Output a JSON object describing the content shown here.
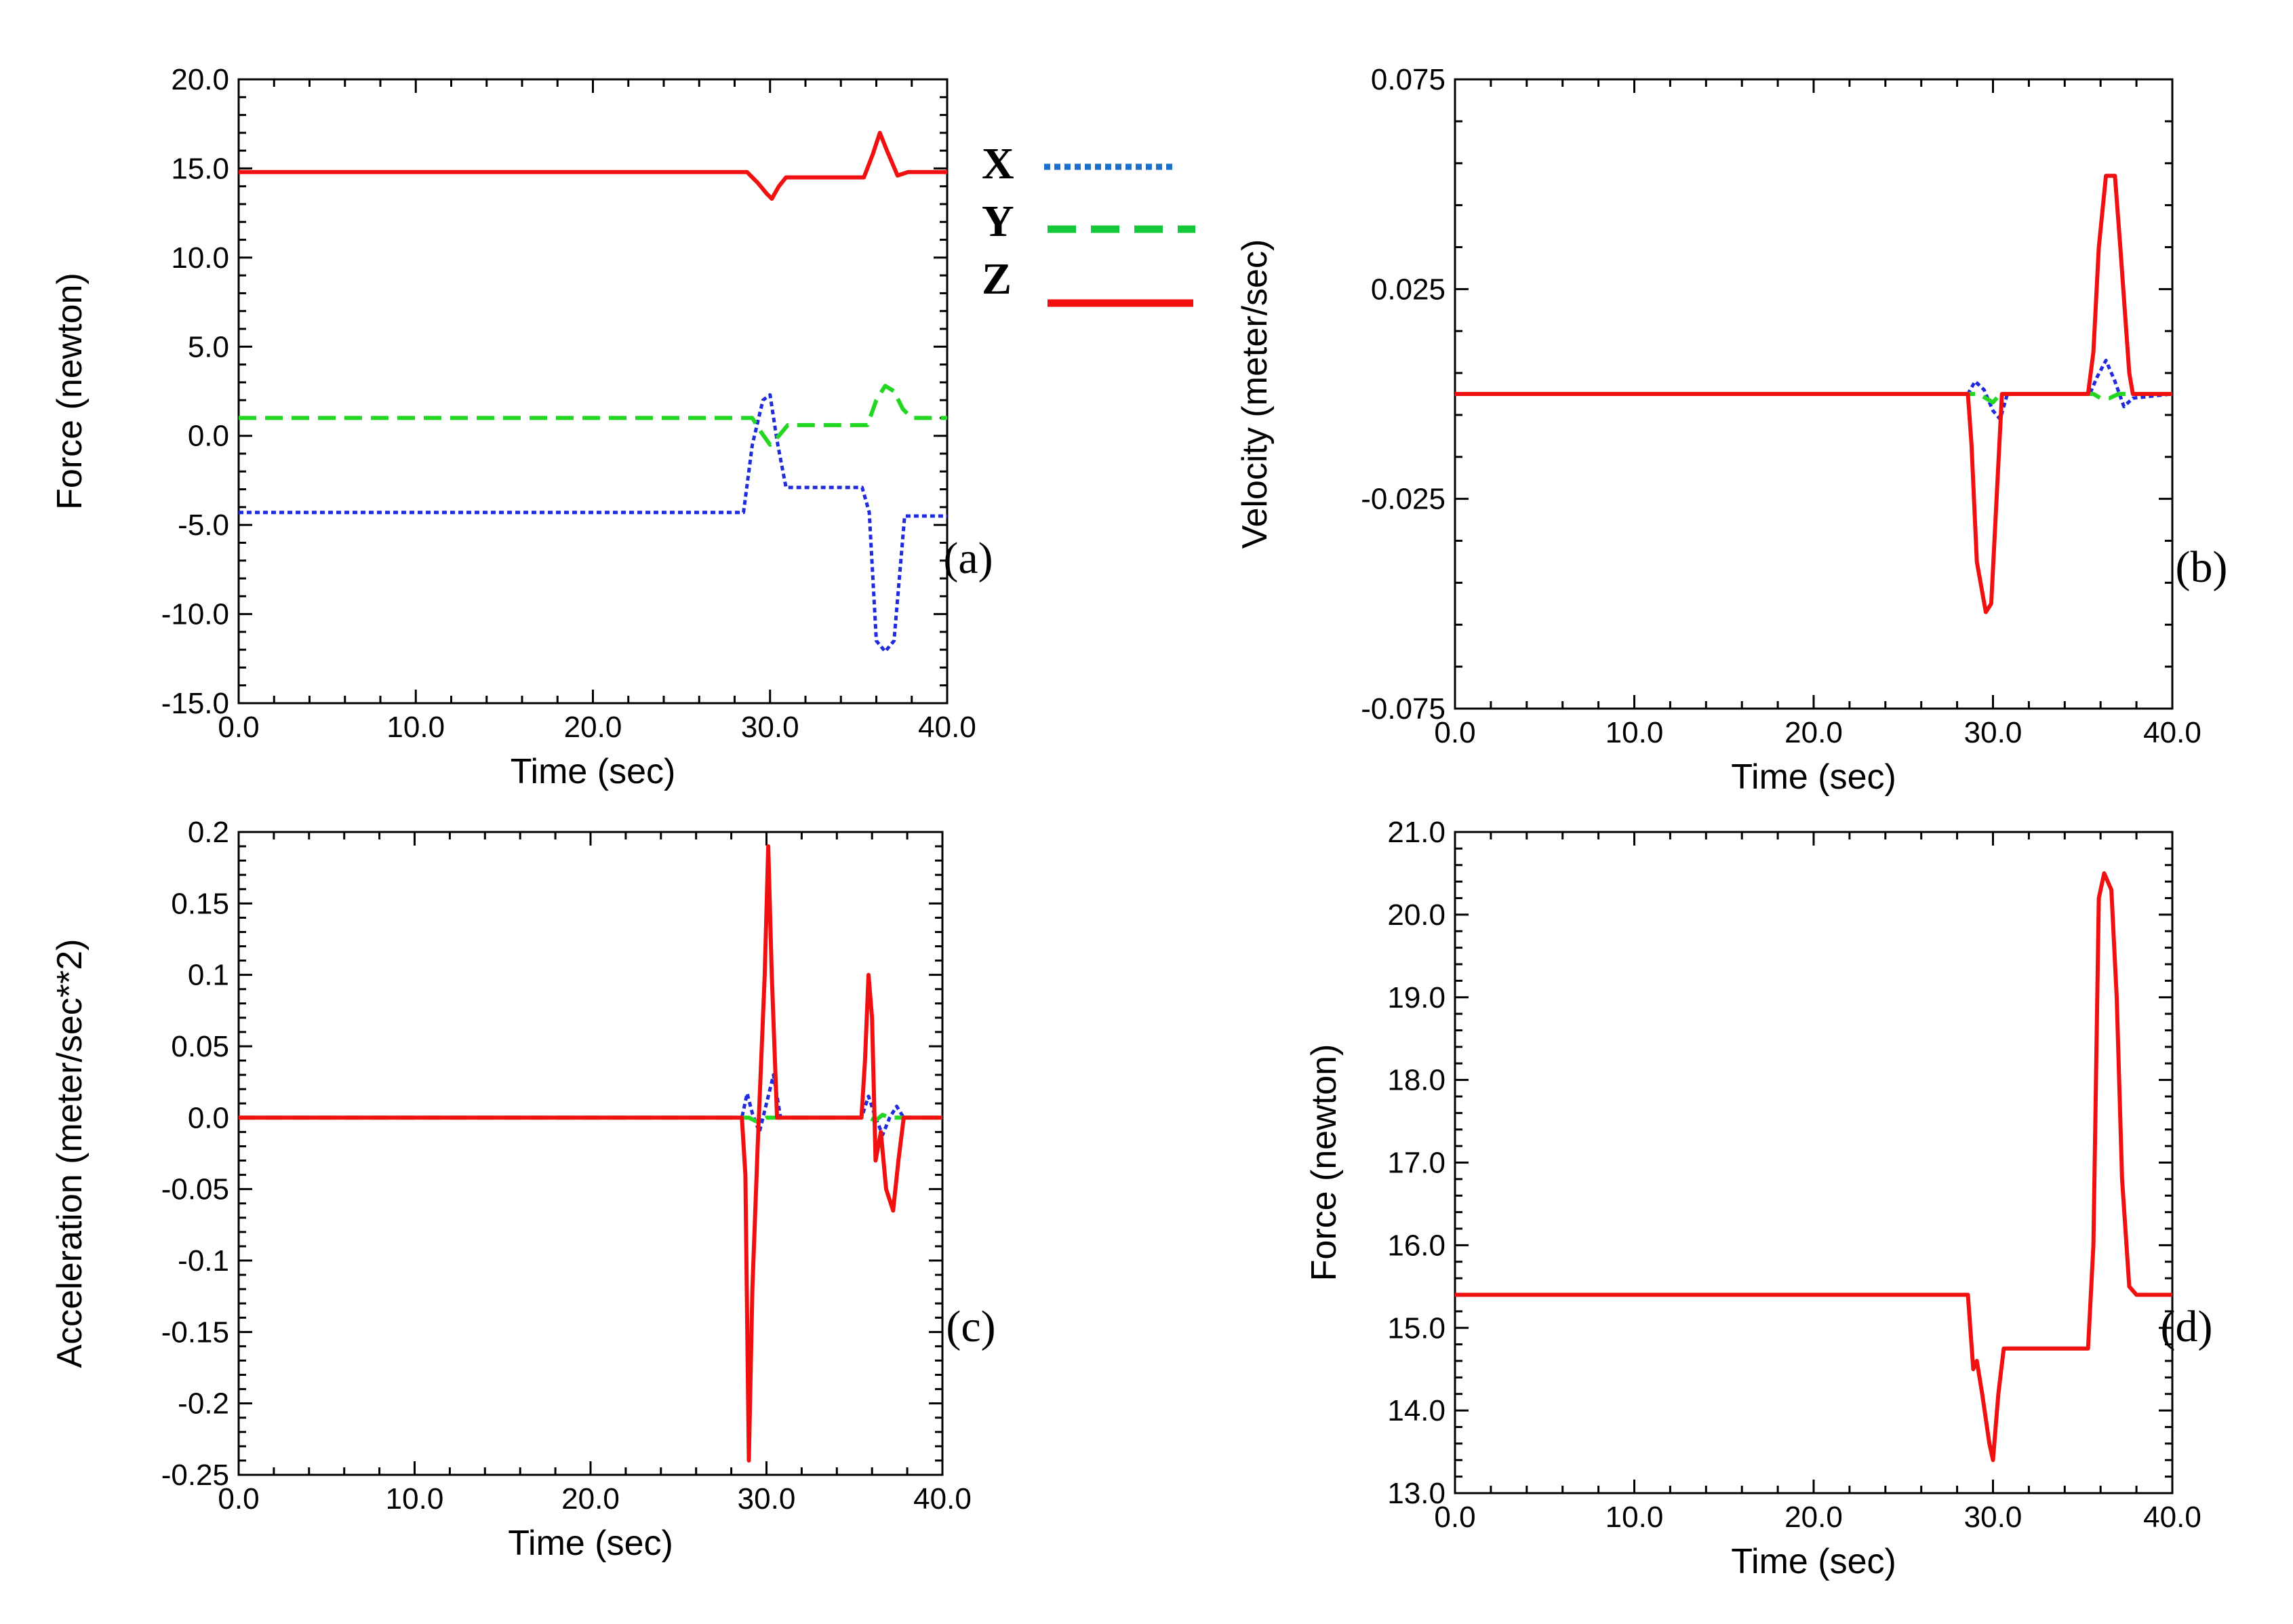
{
  "colors": {
    "X": "#1f2bdc",
    "Y": "#22d622",
    "Z": "#f01010",
    "legend_X": "#1d6fc9",
    "legend_Y": "#14c83a"
  },
  "legend": {
    "items": [
      {
        "key": "X",
        "label": "X",
        "style": "dotted"
      },
      {
        "key": "Y",
        "label": "Y",
        "style": "dashed"
      },
      {
        "key": "Z",
        "label": "Z",
        "style": "solid"
      }
    ]
  },
  "chart_data": [
    {
      "id": "a",
      "type": "line",
      "panel_label": "(a)",
      "xlabel": "Time (sec)",
      "ylabel": "Force (newton)",
      "xlim": [
        0,
        40
      ],
      "ylim": [
        -15,
        20
      ],
      "xticks": [
        "0.0",
        "10.0",
        "20.0",
        "30.0",
        "40.0"
      ],
      "xtick_values": [
        0,
        10,
        20,
        30,
        40
      ],
      "yticks": [
        "20.0",
        "15.0",
        "10.0",
        "5.0",
        "0.0",
        "-5.0",
        "-10.0",
        "-15.0"
      ],
      "ytick_values": [
        20,
        15,
        10,
        5,
        0,
        -5,
        -10,
        -15
      ],
      "series": [
        {
          "name": "X",
          "style": "dotted",
          "x": [
            0,
            28.5,
            29.0,
            29.6,
            30.0,
            30.4,
            30.9,
            35.2,
            35.6,
            36.0,
            36.5,
            37.0,
            37.6,
            40
          ],
          "y": [
            -4.3,
            -4.3,
            -0.5,
            2.0,
            2.3,
            -0.3,
            -2.9,
            -2.9,
            -4.3,
            -11.5,
            -12.1,
            -11.5,
            -4.5,
            -4.5
          ]
        },
        {
          "name": "Y",
          "style": "dashed",
          "x": [
            0,
            29.0,
            29.5,
            30.0,
            30.5,
            31.0,
            35.5,
            36.0,
            36.5,
            37.0,
            37.5,
            38.0,
            40
          ],
          "y": [
            1.0,
            1.0,
            0.2,
            -0.5,
            0.0,
            0.6,
            0.6,
            2.0,
            2.8,
            2.5,
            1.5,
            1.0,
            1.0
          ]
        },
        {
          "name": "Z",
          "style": "solid",
          "x": [
            0,
            28.7,
            29.3,
            29.8,
            30.1,
            30.5,
            30.9,
            35.3,
            35.8,
            36.2,
            36.6,
            37.2,
            37.8,
            40
          ],
          "y": [
            14.8,
            14.8,
            14.2,
            13.6,
            13.3,
            14.0,
            14.5,
            14.5,
            15.8,
            17.0,
            16.0,
            14.6,
            14.8,
            14.8
          ]
        }
      ]
    },
    {
      "id": "b",
      "type": "line",
      "panel_label": "(b)",
      "xlabel": "Time (sec)",
      "ylabel": "Velocity (meter/sec)",
      "xlim": [
        0,
        40
      ],
      "ylim": [
        -0.075,
        0.075
      ],
      "xticks": [
        "0.0",
        "10.0",
        "20.0",
        "30.0",
        "40.0"
      ],
      "xtick_values": [
        0,
        10,
        20,
        30,
        40
      ],
      "yticks": [
        "0.075",
        "0.025",
        "-0.025",
        "-0.075"
      ],
      "ytick_values": [
        0.075,
        0.025,
        -0.025,
        -0.075
      ],
      "series": [
        {
          "name": "X",
          "style": "dotted",
          "x": [
            0,
            28.6,
            29.0,
            29.5,
            30.0,
            30.4,
            30.8,
            35.4,
            35.8,
            36.3,
            36.8,
            37.3,
            37.8,
            40
          ],
          "y": [
            0,
            0,
            0.003,
            0.001,
            -0.004,
            -0.006,
            0,
            0,
            0.004,
            0.008,
            0.003,
            -0.003,
            -0.001,
            0
          ]
        },
        {
          "name": "Y",
          "style": "dashed",
          "x": [
            0,
            29.2,
            29.6,
            30.0,
            30.4,
            35.6,
            36.0,
            36.5,
            37.0,
            40
          ],
          "y": [
            0,
            0,
            -0.001,
            -0.002,
            0,
            0,
            -0.001,
            -0.001,
            0,
            0
          ]
        },
        {
          "name": "Z",
          "style": "solid",
          "x": [
            0,
            28.6,
            28.8,
            29.1,
            29.6,
            29.9,
            30.2,
            30.5,
            35.3,
            35.6,
            35.9,
            36.3,
            36.8,
            37.1,
            37.6,
            37.8,
            40
          ],
          "y": [
            0,
            0,
            -0.012,
            -0.04,
            -0.052,
            -0.05,
            -0.025,
            0,
            0,
            0.01,
            0.035,
            0.052,
            0.052,
            0.035,
            0.005,
            0,
            0
          ]
        }
      ]
    },
    {
      "id": "c",
      "type": "line",
      "panel_label": "(c)",
      "xlabel": "Time (sec)",
      "ylabel": "Acceleration (meter/sec**2)",
      "xlim": [
        0,
        40
      ],
      "ylim": [
        -0.25,
        0.2
      ],
      "xticks": [
        "0.0",
        "10.0",
        "20.0",
        "30.0",
        "40.0"
      ],
      "xtick_values": [
        0,
        10,
        20,
        30,
        40
      ],
      "yticks": [
        "0.2",
        "0.15",
        "0.1",
        "0.05",
        "0.0",
        "-0.05",
        "-0.1",
        "-0.15",
        "-0.2",
        "-0.25"
      ],
      "ytick_values": [
        0.2,
        0.15,
        0.1,
        0.05,
        0,
        -0.05,
        -0.1,
        -0.15,
        -0.2,
        -0.25
      ],
      "series": [
        {
          "name": "X",
          "style": "dotted",
          "x": [
            0,
            28.6,
            28.9,
            29.2,
            29.6,
            30.0,
            30.4,
            30.8,
            35.4,
            35.8,
            36.2,
            36.6,
            37.0,
            37.4,
            37.8,
            40
          ],
          "y": [
            0,
            0,
            0.017,
            0.003,
            -0.01,
            0.01,
            0.03,
            0,
            0,
            0.015,
            0.0,
            -0.012,
            0.0,
            0.008,
            0.0,
            0
          ]
        },
        {
          "name": "Y",
          "style": "dashed",
          "x": [
            0,
            29.0,
            29.5,
            30.0,
            35.8,
            36.2,
            36.6,
            37.0,
            40
          ],
          "y": [
            0,
            0,
            -0.003,
            0,
            0,
            -0.002,
            0.002,
            0,
            0
          ]
        },
        {
          "name": "Z",
          "style": "solid",
          "x": [
            0,
            28.6,
            28.8,
            29.0,
            29.2,
            29.5,
            29.9,
            30.1,
            30.3,
            30.6,
            35.4,
            35.6,
            35.8,
            36.0,
            36.2,
            36.5,
            36.8,
            37.2,
            37.5,
            37.8,
            40
          ],
          "y": [
            0,
            0,
            -0.04,
            -0.24,
            -0.12,
            -0.02,
            0.1,
            0.19,
            0.1,
            0,
            0,
            0.04,
            0.1,
            0.07,
            -0.03,
            -0.01,
            -0.05,
            -0.065,
            -0.03,
            0,
            0
          ]
        }
      ]
    },
    {
      "id": "d",
      "type": "line",
      "panel_label": "(d)",
      "xlabel": "Time (sec)",
      "ylabel": "Force (newton)",
      "xlim": [
        0,
        40
      ],
      "ylim": [
        13,
        21
      ],
      "xticks": [
        "0.0",
        "10.0",
        "20.0",
        "30.0",
        "40.0"
      ],
      "xtick_values": [
        0,
        10,
        20,
        30,
        40
      ],
      "yticks": [
        "21.0",
        "20.0",
        "19.0",
        "18.0",
        "17.0",
        "16.0",
        "15.0",
        "14.0",
        "13.0"
      ],
      "ytick_values": [
        21,
        20,
        19,
        18,
        17,
        16,
        15,
        14,
        13
      ],
      "series": [
        {
          "name": "Z",
          "style": "solid",
          "x": [
            0,
            28.6,
            28.9,
            29.1,
            29.4,
            29.8,
            30.0,
            30.3,
            30.6,
            35.3,
            35.6,
            35.9,
            36.2,
            36.6,
            36.9,
            37.2,
            37.6,
            38.0,
            40
          ],
          "y": [
            15.4,
            15.4,
            14.5,
            14.6,
            14.2,
            13.6,
            13.4,
            14.2,
            14.75,
            14.75,
            16.0,
            20.2,
            20.5,
            20.3,
            19.0,
            16.8,
            15.5,
            15.4,
            15.4
          ]
        }
      ]
    }
  ]
}
